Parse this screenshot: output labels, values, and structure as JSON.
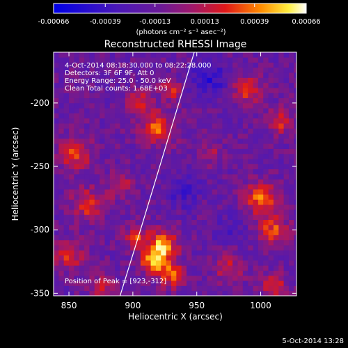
{
  "chart_data": {
    "type": "heatmap",
    "title": "Reconstructed RHESSI Image",
    "xlabel": "Heliocentric X (arcsec)",
    "ylabel": "Heliocentric Y (arcsec)",
    "xlim": [
      838,
      1028
    ],
    "ylim": [
      -352,
      -160
    ],
    "x_ticks": [
      850,
      900,
      950,
      1000
    ],
    "y_ticks": [
      -200,
      -250,
      -300,
      -350
    ],
    "colorbar": {
      "range": [
        -0.00066,
        0.00066
      ],
      "tick_values": [
        -0.00066,
        -0.00039,
        -0.00013,
        0.00013,
        0.00039,
        0.00066
      ],
      "tick_labels": [
        "-0.00066",
        "-0.00039",
        "-0.00013",
        "0.00013",
        "0.00039",
        "0.00066"
      ],
      "unit_label": "(photons cm⁻² s⁻¹ asec⁻²)"
    },
    "annotations": [
      "4-Oct-2014 08:18:30.000 to 08:22:28.000",
      "Detectors: 3F 6F 9F, Att 0",
      "Energy Range: 25.0 - 50.0 keV",
      "Clean    Total counts: 1.68E+03"
    ],
    "peak_label": "Position of Peak = [923,-312]",
    "peak": {
      "x": 923,
      "y": -312
    },
    "limb_curve": [
      [
        948,
        -160
      ],
      [
        936,
        -200
      ],
      [
        921,
        -250
      ],
      [
        906,
        -300
      ],
      [
        890,
        -352
      ]
    ],
    "blobs": [
      {
        "x": 923,
        "y": -312,
        "amp": 0.00066,
        "r": 8
      },
      {
        "x": 915,
        "y": -325,
        "amp": 0.0005,
        "r": 7
      },
      {
        "x": 930,
        "y": -335,
        "amp": 0.00048,
        "r": 7
      },
      {
        "x": 902,
        "y": -305,
        "amp": 0.0004,
        "r": 6
      },
      {
        "x": 920,
        "y": -220,
        "amp": 0.00045,
        "r": 9
      },
      {
        "x": 905,
        "y": -200,
        "amp": 0.00038,
        "r": 7
      },
      {
        "x": 930,
        "y": -190,
        "amp": 0.00032,
        "r": 6
      },
      {
        "x": 855,
        "y": -240,
        "amp": 0.00042,
        "r": 9
      },
      {
        "x": 865,
        "y": -280,
        "amp": 0.00038,
        "r": 9
      },
      {
        "x": 850,
        "y": -320,
        "amp": 0.00035,
        "r": 8
      },
      {
        "x": 875,
        "y": -345,
        "amp": 0.0003,
        "r": 7
      },
      {
        "x": 1000,
        "y": -275,
        "amp": 0.0005,
        "r": 9
      },
      {
        "x": 1010,
        "y": -300,
        "amp": 0.00042,
        "r": 8
      },
      {
        "x": 990,
        "y": -190,
        "amp": 0.0004,
        "r": 8
      },
      {
        "x": 1015,
        "y": -215,
        "amp": 0.00035,
        "r": 7
      },
      {
        "x": 975,
        "y": -330,
        "amp": 0.0003,
        "r": 8
      },
      {
        "x": 1010,
        "y": -345,
        "amp": 0.00036,
        "r": 7
      },
      {
        "x": 960,
        "y": -240,
        "amp": 0.00022,
        "r": 6
      },
      {
        "x": 890,
        "y": -265,
        "amp": 0.0003,
        "r": 7
      },
      {
        "x": 960,
        "y": -180,
        "amp": -0.0003,
        "r": 10
      },
      {
        "x": 940,
        "y": -270,
        "amp": -0.00022,
        "r": 9
      },
      {
        "x": 975,
        "y": -300,
        "amp": -0.00018,
        "r": 8
      }
    ]
  },
  "footer": {
    "date": "5-Oct-2014 13:28"
  }
}
